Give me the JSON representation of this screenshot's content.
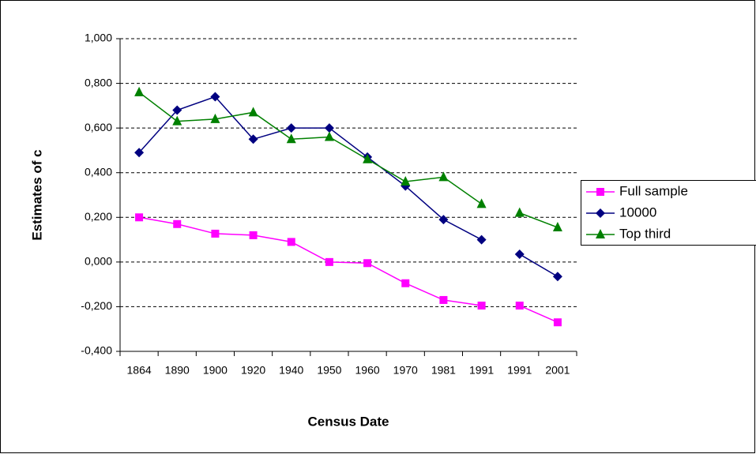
{
  "chart_data": {
    "type": "line",
    "x_label": "Census Date",
    "y_label": "Estimates of c",
    "categories": [
      "1864",
      "1890",
      "1900",
      "1920",
      "1940",
      "1950",
      "1960",
      "1970",
      "1981",
      "1991",
      "1991",
      "2001"
    ],
    "series": [
      {
        "name": "Full sample",
        "color": "#ff00ff",
        "marker": "square",
        "values": [
          0.2,
          0.17,
          0.127,
          0.12,
          0.09,
          0.0,
          -0.005,
          -0.095,
          -0.17,
          -0.195,
          -0.195,
          -0.27
        ]
      },
      {
        "name": "10000",
        "color": "#000080",
        "marker": "diamond",
        "values": [
          0.49,
          0.68,
          0.74,
          0.55,
          0.6,
          0.6,
          0.47,
          0.34,
          0.19,
          0.1,
          0.035,
          -0.065
        ]
      },
      {
        "name": "Top third",
        "color": "#008000",
        "marker": "triangle",
        "values": [
          0.76,
          0.63,
          0.64,
          0.67,
          0.55,
          0.56,
          0.46,
          0.36,
          0.38,
          0.26,
          0.22,
          0.155
        ]
      }
    ],
    "ylim": [
      -0.4,
      1.0
    ],
    "yticks": [
      {
        "value": -0.4,
        "label": "-0,400"
      },
      {
        "value": -0.2,
        "label": "-0,200"
      },
      {
        "value": 0,
        "label": "0,000"
      },
      {
        "value": 0.2,
        "label": "0,200"
      },
      {
        "value": 0.4,
        "label": "0,400"
      },
      {
        "value": 0.6,
        "label": "0,600"
      },
      {
        "value": 0.8,
        "label": "0,800"
      },
      {
        "value": 1.0,
        "label": "1,000"
      }
    ],
    "grid": true,
    "legend": "right"
  }
}
